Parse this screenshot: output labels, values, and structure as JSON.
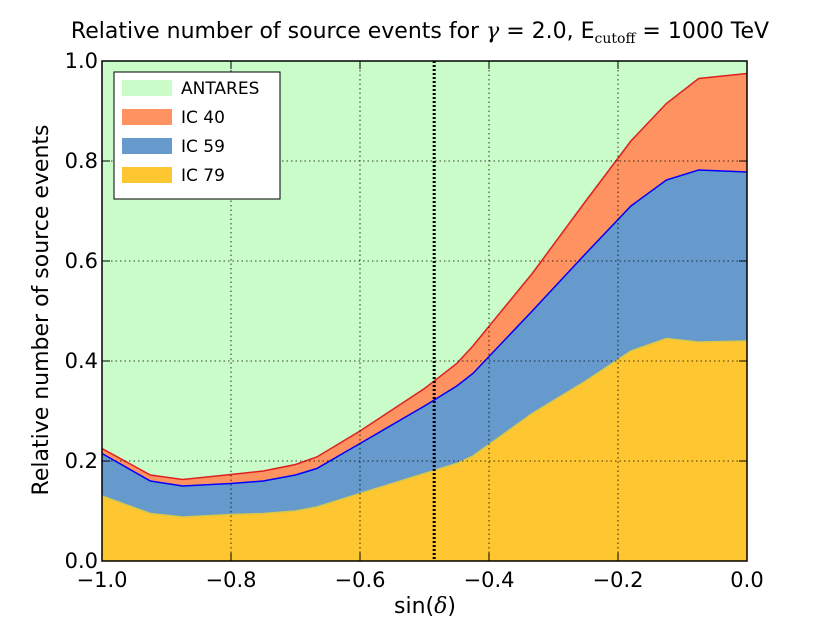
{
  "chart_data": {
    "type": "area",
    "stacked": true,
    "title": {
      "prefix": "Relative number of source events for ",
      "gamma_symbol": "γ",
      "gamma_text": " = 2.0, E",
      "subscript": "cutoff",
      "suffix": " = 1000 TeV"
    },
    "xlabel": {
      "prefix": "sin(",
      "symbol": "δ",
      "suffix": ")"
    },
    "ylabel": "Relative number of source events",
    "xlim": [
      -1.0,
      0.0
    ],
    "ylim": [
      0.0,
      1.0
    ],
    "xticks": [
      -1.0,
      -0.8,
      -0.6,
      -0.4,
      -0.2,
      0.0
    ],
    "xtick_labels": [
      "−1.0",
      "−0.8",
      "−0.6",
      "−0.4",
      "−0.2",
      "0.0"
    ],
    "yticks": [
      0.0,
      0.2,
      0.4,
      0.6,
      0.8,
      1.0
    ],
    "ytick_labels": [
      "0.0",
      "0.2",
      "0.4",
      "0.6",
      "0.8",
      "1.0"
    ],
    "grid": true,
    "legend_position": "top-left",
    "vertical_marker_x": -0.485,
    "x": [
      -1.0,
      -0.925,
      -0.875,
      -0.8,
      -0.75,
      -0.7,
      -0.667,
      -0.6,
      -0.5,
      -0.45,
      -0.425,
      -0.333,
      -0.25,
      -0.18,
      -0.125,
      -0.075,
      0.0
    ],
    "series": [
      {
        "name": "IC 79",
        "color": "#fec631",
        "line": "#d8c84a",
        "values": [
          0.13,
          0.095,
          0.088,
          0.093,
          0.095,
          0.1,
          0.108,
          0.135,
          0.175,
          0.195,
          0.21,
          0.295,
          0.36,
          0.42,
          0.445,
          0.438,
          0.44
        ]
      },
      {
        "name": "IC 59",
        "color": "#6699cc",
        "line": "#0000ff",
        "values": [
          0.215,
          0.16,
          0.15,
          0.155,
          0.16,
          0.172,
          0.185,
          0.235,
          0.31,
          0.35,
          0.375,
          0.5,
          0.615,
          0.71,
          0.762,
          0.782,
          0.778
        ]
      },
      {
        "name": "IC 40",
        "color": "#fe9261",
        "line": "#e02020",
        "values": [
          0.225,
          0.172,
          0.163,
          0.173,
          0.18,
          0.193,
          0.208,
          0.26,
          0.345,
          0.395,
          0.43,
          0.575,
          0.72,
          0.84,
          0.915,
          0.965,
          0.975
        ]
      },
      {
        "name": "ANTARES",
        "color": "#c9fcc9",
        "line": "#c9fcc9",
        "values": [
          1.0,
          1.0,
          1.0,
          1.0,
          1.0,
          1.0,
          1.0,
          1.0,
          1.0,
          1.0,
          1.0,
          1.0,
          1.0,
          1.0,
          1.0,
          1.0,
          1.0
        ]
      }
    ],
    "legend": [
      {
        "label": "ANTARES",
        "color": "#c9fcc9"
      },
      {
        "label": "IC 40",
        "color": "#fe9261"
      },
      {
        "label": "IC 59",
        "color": "#6699cc"
      },
      {
        "label": "IC 79",
        "color": "#fec631"
      }
    ]
  }
}
